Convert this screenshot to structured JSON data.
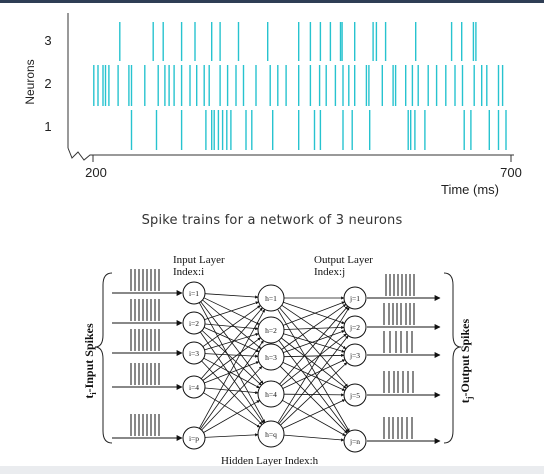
{
  "raster": {
    "ylabel": "Neurons",
    "xlabel": "Time (ms)",
    "x_start_label": "200",
    "x_end_label": "700",
    "y_ticks": [
      "3",
      "2",
      "1"
    ],
    "spike_color": "#27c3cf",
    "neurons": [
      {
        "id": "3",
        "spikes": [
          232,
          272,
          284,
          306,
          322,
          342,
          352,
          374,
          409,
          446,
          460,
          472,
          484,
          496,
          498,
          513,
          535,
          539,
          550,
          586,
          629,
          641,
          655,
          658
        ]
      },
      {
        "id": "2",
        "spikes": [
          201,
          206,
          212,
          215,
          219,
          230,
          243,
          246,
          262,
          278,
          286,
          291,
          297,
          306,
          316,
          324,
          333,
          339,
          352,
          361,
          371,
          380,
          395,
          412,
          421,
          431,
          446,
          460,
          471,
          479,
          490,
          499,
          506,
          513,
          527,
          530,
          546,
          559,
          562,
          574,
          582,
          589,
          601,
          611,
          622,
          633,
          642,
          656,
          665,
          671,
          685,
          690
        ]
      },
      {
        "id": "1",
        "spikes": [
          246,
          276,
          306,
          335,
          342,
          345,
          350,
          355,
          360,
          365,
          383,
          390,
          415,
          446,
          465,
          472,
          499,
          510,
          531,
          577,
          580,
          585,
          597,
          644,
          652,
          674,
          685,
          694
        ]
      }
    ]
  },
  "caption": "Spike trains for a network of 3 neurons",
  "network": {
    "input_layer_label": "Input Layer",
    "input_index_label": "Index:i",
    "output_layer_label": "Output Layer",
    "output_index_label": "Index:j",
    "hidden_label": "Hidden Layer Index:h",
    "left_side_label": "t",
    "left_side_sub": "i",
    "left_side_rest": "-Input Spikes",
    "right_side_label": "t",
    "right_side_sub": "j",
    "right_side_rest": "-Output Spikes",
    "input_nodes": [
      "i=1",
      "i=2",
      "i=3",
      "i=4",
      "i=p"
    ],
    "hidden_nodes": [
      "h=1",
      "h=2",
      "h=3",
      "h=4",
      "h=q"
    ],
    "output_nodes": [
      "j=1",
      "j=2",
      "j=3",
      "j=5",
      "j=n"
    ]
  }
}
